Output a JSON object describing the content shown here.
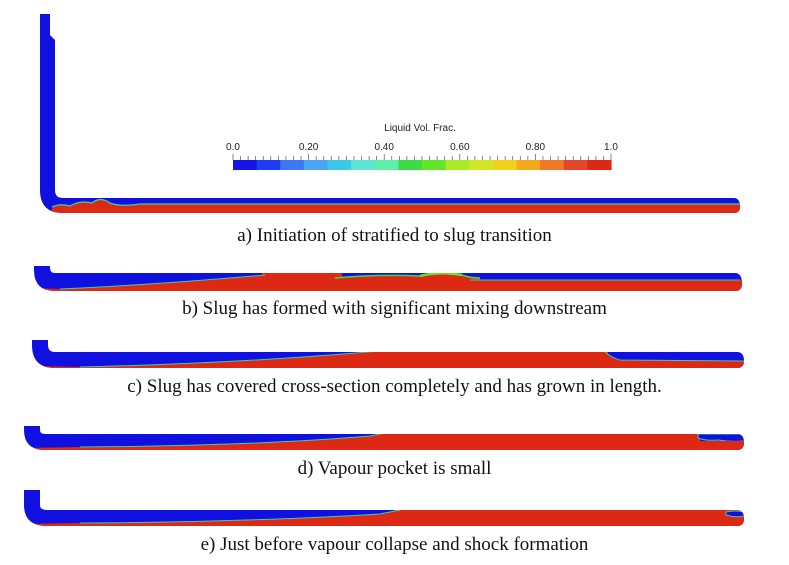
{
  "colorbar": {
    "title": "Liquid Vol. Frac.",
    "ticks": [
      "0.0",
      "0.20",
      "0.40",
      "0.60",
      "0.80",
      "1.0"
    ],
    "colors": [
      "#1414e6",
      "#1e3cf0",
      "#3c78f5",
      "#4ba5f5",
      "#3cc8e6",
      "#5ae6d2",
      "#5af0aa",
      "#3cdc46",
      "#64e628",
      "#aaeb28",
      "#d2e628",
      "#f0d21e",
      "#f5aa1e",
      "#f07828",
      "#e64628",
      "#dc2814"
    ]
  },
  "colors": {
    "gas": "#1010e0",
    "liquid": "#dd2814",
    "interface": "#33d4a0"
  },
  "panels": [
    {
      "id": "a",
      "caption": "a) Initiation of stratified to slug transition"
    },
    {
      "id": "b",
      "caption": "b) Slug has formed with significant mixing downstream"
    },
    {
      "id": "c",
      "caption": "c) Slug has covered cross-section completely and has grown in length."
    },
    {
      "id": "d",
      "caption": "d) Vapour pocket is small"
    },
    {
      "id": "e",
      "caption": "e) Just before vapour collapse and shock formation"
    }
  ]
}
